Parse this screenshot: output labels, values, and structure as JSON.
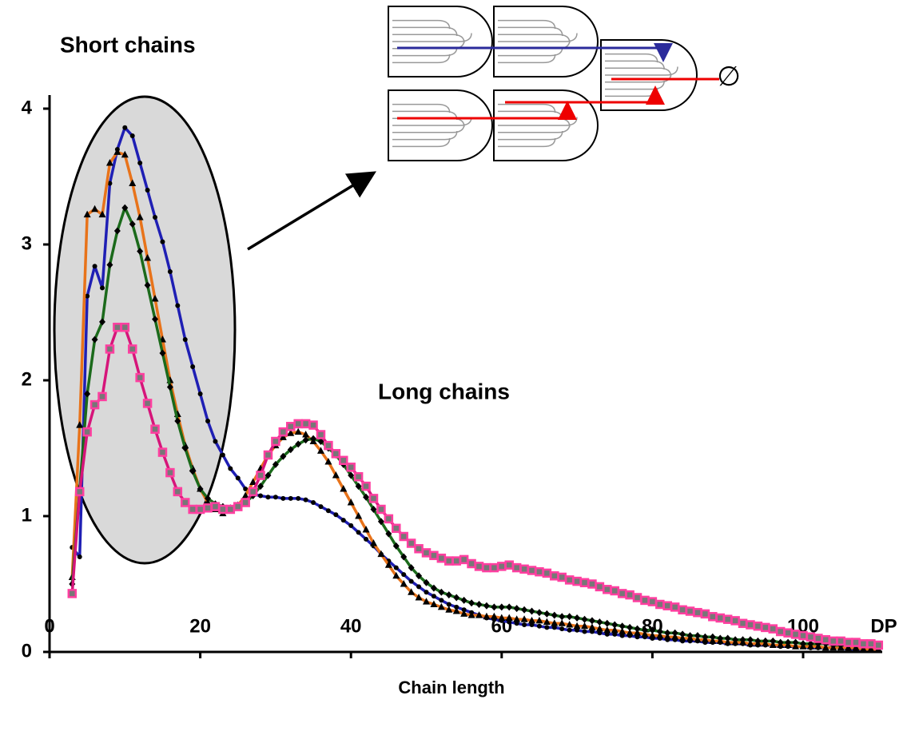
{
  "chart_data": {
    "type": "line",
    "annotations": [
      "Short chains",
      "Long chains",
      "∅"
    ],
    "x_label": "Chain length",
    "x_unit_label": "DP",
    "xlim": [
      0,
      110.5
    ],
    "xticks": [
      0,
      20,
      40,
      60,
      80,
      100
    ],
    "ylim": [
      0,
      4.1
    ],
    "yticks": [
      0,
      1,
      2,
      3,
      4
    ],
    "x": [
      3,
      4,
      5,
      6,
      7,
      8,
      9,
      10,
      11,
      12,
      13,
      14,
      15,
      16,
      17,
      18,
      19,
      20,
      21,
      22,
      23,
      24,
      25,
      26,
      27,
      28,
      29,
      30,
      31,
      32,
      33,
      34,
      35,
      36,
      37,
      38,
      39,
      40,
      41,
      42,
      43,
      44,
      45,
      46,
      47,
      48,
      49,
      50,
      51,
      52,
      53,
      54,
      55,
      56,
      57,
      58,
      59,
      60,
      61,
      62,
      63,
      64,
      65,
      66,
      67,
      68,
      69,
      70,
      71,
      72,
      73,
      74,
      75,
      76,
      77,
      78,
      79,
      80,
      81,
      82,
      83,
      84,
      85,
      86,
      87,
      88,
      89,
      90,
      91,
      92,
      93,
      94,
      95,
      96,
      97,
      98,
      99,
      100,
      101,
      102,
      103,
      104,
      105,
      106,
      107,
      108,
      109,
      110
    ],
    "series": [
      {
        "color": "#1f1fb4",
        "marker": "circle",
        "marker_color": "#000000",
        "values": [
          0.77,
          0.7,
          2.62,
          2.84,
          2.68,
          3.45,
          3.7,
          3.86,
          3.8,
          3.6,
          3.4,
          3.2,
          3.02,
          2.8,
          2.55,
          2.3,
          2.1,
          1.9,
          1.7,
          1.55,
          1.45,
          1.35,
          1.28,
          1.2,
          1.16,
          1.15,
          1.14,
          1.14,
          1.13,
          1.13,
          1.13,
          1.12,
          1.1,
          1.07,
          1.04,
          1.01,
          0.97,
          0.93,
          0.88,
          0.83,
          0.78,
          0.72,
          0.67,
          0.62,
          0.57,
          0.52,
          0.48,
          0.44,
          0.41,
          0.38,
          0.35,
          0.33,
          0.31,
          0.29,
          0.27,
          0.25,
          0.24,
          0.23,
          0.22,
          0.21,
          0.2,
          0.2,
          0.19,
          0.18,
          0.18,
          0.17,
          0.16,
          0.16,
          0.15,
          0.15,
          0.14,
          0.13,
          0.13,
          0.12,
          0.12,
          0.11,
          0.11,
          0.1,
          0.1,
          0.09,
          0.09,
          0.08,
          0.08,
          0.08,
          0.07,
          0.07,
          0.07,
          0.06,
          0.06,
          0.06,
          0.05,
          0.05,
          0.05,
          0.05,
          0.04,
          0.04,
          0.04,
          0.04,
          0.03,
          0.03,
          0.03,
          0.03,
          0.03,
          0.02,
          0.02,
          0.02,
          0.02,
          0.02
        ]
      },
      {
        "color": "#e8731a",
        "marker": "triangle",
        "marker_color": "#000000",
        "values": [
          0.55,
          1.67,
          3.22,
          3.26,
          3.22,
          3.6,
          3.68,
          3.66,
          3.45,
          3.2,
          2.9,
          2.6,
          2.3,
          2.0,
          1.75,
          1.52,
          1.35,
          1.2,
          1.1,
          1.05,
          1.02,
          1.04,
          1.08,
          1.15,
          1.25,
          1.35,
          1.45,
          1.52,
          1.58,
          1.61,
          1.62,
          1.6,
          1.55,
          1.48,
          1.4,
          1.3,
          1.2,
          1.1,
          1.0,
          0.9,
          0.8,
          0.72,
          0.64,
          0.56,
          0.5,
          0.44,
          0.4,
          0.37,
          0.35,
          0.33,
          0.31,
          0.3,
          0.28,
          0.27,
          0.27,
          0.26,
          0.26,
          0.25,
          0.25,
          0.24,
          0.24,
          0.23,
          0.23,
          0.22,
          0.21,
          0.21,
          0.2,
          0.19,
          0.19,
          0.18,
          0.17,
          0.16,
          0.16,
          0.15,
          0.14,
          0.14,
          0.13,
          0.12,
          0.12,
          0.11,
          0.11,
          0.1,
          0.1,
          0.09,
          0.09,
          0.08,
          0.08,
          0.07,
          0.07,
          0.07,
          0.06,
          0.06,
          0.06,
          0.05,
          0.05,
          0.05,
          0.04,
          0.04,
          0.04,
          0.04,
          0.03,
          0.03,
          0.03,
          0.03,
          0.03,
          0.02,
          0.02,
          0.02
        ]
      },
      {
        "color": "#1b6a1b",
        "marker": "diamond",
        "marker_color": "#000000",
        "values": [
          0.5,
          1.2,
          1.9,
          2.3,
          2.43,
          2.85,
          3.1,
          3.27,
          3.15,
          2.95,
          2.7,
          2.45,
          2.2,
          1.95,
          1.7,
          1.5,
          1.33,
          1.2,
          1.13,
          1.09,
          1.07,
          1.06,
          1.07,
          1.1,
          1.15,
          1.22,
          1.3,
          1.38,
          1.44,
          1.49,
          1.53,
          1.56,
          1.57,
          1.55,
          1.5,
          1.45,
          1.38,
          1.3,
          1.22,
          1.14,
          1.05,
          0.96,
          0.87,
          0.78,
          0.7,
          0.62,
          0.56,
          0.51,
          0.47,
          0.44,
          0.42,
          0.4,
          0.38,
          0.36,
          0.35,
          0.34,
          0.33,
          0.33,
          0.33,
          0.32,
          0.31,
          0.3,
          0.29,
          0.28,
          0.27,
          0.26,
          0.26,
          0.25,
          0.24,
          0.23,
          0.22,
          0.21,
          0.2,
          0.19,
          0.18,
          0.17,
          0.16,
          0.16,
          0.15,
          0.14,
          0.14,
          0.13,
          0.12,
          0.12,
          0.11,
          0.11,
          0.1,
          0.1,
          0.09,
          0.09,
          0.09,
          0.08,
          0.08,
          0.08,
          0.07,
          0.07,
          0.07,
          0.06,
          0.06,
          0.06,
          0.06,
          0.05,
          0.05,
          0.05,
          0.05,
          0.04,
          0.04,
          0.04
        ]
      },
      {
        "color": "#d6157a",
        "marker": "square",
        "marker_color": "#ff3fa0",
        "values": [
          0.43,
          1.18,
          1.62,
          1.82,
          1.88,
          2.23,
          2.39,
          2.39,
          2.23,
          2.02,
          1.83,
          1.64,
          1.47,
          1.32,
          1.18,
          1.1,
          1.05,
          1.05,
          1.06,
          1.07,
          1.05,
          1.05,
          1.07,
          1.1,
          1.18,
          1.3,
          1.45,
          1.55,
          1.62,
          1.66,
          1.68,
          1.68,
          1.67,
          1.6,
          1.52,
          1.46,
          1.41,
          1.36,
          1.29,
          1.22,
          1.13,
          1.05,
          0.98,
          0.91,
          0.85,
          0.8,
          0.76,
          0.73,
          0.71,
          0.69,
          0.67,
          0.67,
          0.68,
          0.65,
          0.63,
          0.62,
          0.62,
          0.63,
          0.64,
          0.62,
          0.61,
          0.6,
          0.59,
          0.58,
          0.56,
          0.55,
          0.53,
          0.52,
          0.51,
          0.5,
          0.48,
          0.46,
          0.45,
          0.43,
          0.42,
          0.4,
          0.38,
          0.37,
          0.35,
          0.34,
          0.33,
          0.31,
          0.3,
          0.29,
          0.28,
          0.26,
          0.25,
          0.24,
          0.23,
          0.21,
          0.2,
          0.19,
          0.18,
          0.17,
          0.15,
          0.14,
          0.13,
          0.12,
          0.11,
          0.1,
          0.09,
          0.08,
          0.08,
          0.07,
          0.07,
          0.06,
          0.06,
          0.05
        ]
      }
    ]
  }
}
